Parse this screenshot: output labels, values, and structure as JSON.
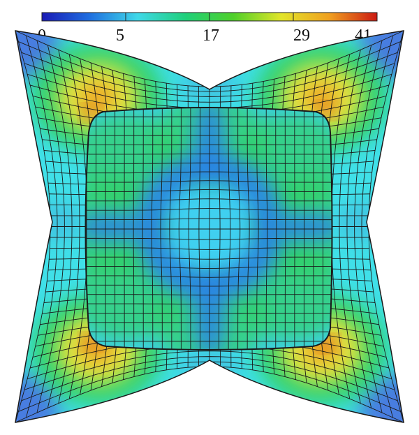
{
  "colorbar": {
    "tick_labels": [
      "0",
      "5",
      "17",
      "29",
      "41"
    ],
    "stops": [
      "#1a1ab5",
      "#1f6fe0",
      "#3fd8e8",
      "#1fd07a",
      "#4fd02a",
      "#e2e52a",
      "#f0a020",
      "#cc1a12"
    ]
  },
  "field": {
    "edge_low": "#4a78e0",
    "mid": "#40c0e0",
    "cyan": "#40e0e8",
    "green": "#30d060",
    "yellow": "#e8e640",
    "orange": "#f0a020",
    "red": "#d8281a",
    "plate_blue": "#2a80e8",
    "plate_cyan": "#40d0f0",
    "mesh_line": "#1a1a1a"
  }
}
